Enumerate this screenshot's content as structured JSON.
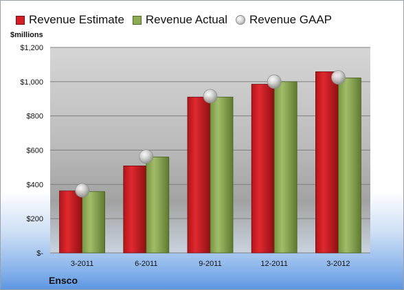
{
  "chart_data": {
    "type": "bar",
    "categories": [
      "3-2011",
      "6-2011",
      "9-2011",
      "12-2011",
      "3-2012"
    ],
    "series": [
      {
        "name": "Revenue Estimate",
        "values": [
          362,
          508,
          910,
          985,
          1058
        ],
        "color": "#d21e24"
      },
      {
        "name": "Revenue Actual",
        "values": [
          358,
          560,
          910,
          1000,
          1022
        ],
        "color": "#8dab55"
      },
      {
        "name": "Revenue GAAP",
        "marker": "sphere",
        "values": [
          365,
          563,
          915,
          1000,
          1025
        ],
        "color": "#c8c8c8"
      }
    ],
    "ylabel": "$millions",
    "ylim": [
      0,
      1200
    ],
    "yticks": [
      0,
      200,
      400,
      600,
      800,
      1000,
      1200
    ],
    "ytick_labels": [
      "$-",
      "$200",
      "$400",
      "$600",
      "$800",
      "$1,000",
      "$1,200"
    ],
    "grid": true,
    "legend": "top",
    "company": "Ensco"
  }
}
